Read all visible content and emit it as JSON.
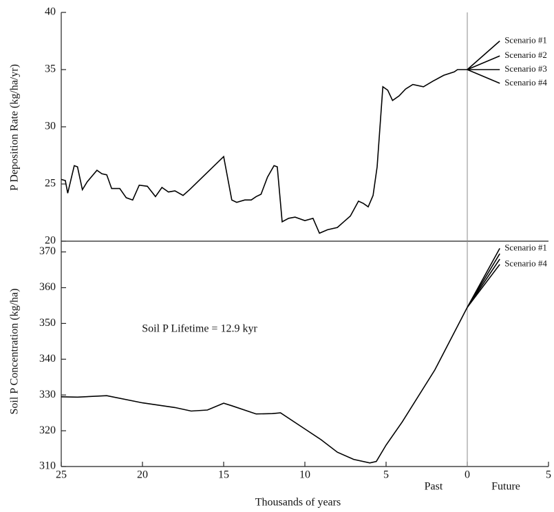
{
  "chart_data": [
    {
      "type": "line",
      "y_label": "P Deposition Rate (kg/ha/yr)",
      "xlim": [
        25,
        -5
      ],
      "ylim": [
        20,
        40
      ],
      "yticks": [
        20,
        25,
        30,
        35,
        40
      ],
      "vline": 0,
      "series": [
        {
          "color": "#000000",
          "x": [
            25,
            24.75,
            24.6,
            24.2,
            24.0,
            23.7,
            23.4,
            22.8,
            22.5,
            22.2,
            21.9,
            21.4,
            21.0,
            20.6,
            20.2,
            19.7,
            19.2,
            18.8,
            18.4,
            18.0,
            17.5,
            17.1,
            15.0,
            14.5,
            14.2,
            13.7,
            13.3,
            13.0,
            12.7,
            12.3,
            11.9,
            11.7,
            11.4,
            11.0,
            10.6,
            10.0,
            9.5,
            9.1,
            8.6,
            8.0,
            7.6,
            7.2,
            6.7,
            6.4,
            6.1,
            5.8,
            5.55,
            5.2,
            4.9,
            4.6,
            4.2,
            3.8,
            3.35,
            2.7,
            2.1,
            1.45,
            0.8,
            0.6,
            0
          ],
          "values": [
            25.4,
            25.3,
            24.2,
            26.6,
            26.5,
            24.5,
            25.2,
            26.2,
            25.9,
            25.8,
            24.6,
            24.6,
            23.8,
            23.6,
            24.9,
            24.8,
            23.9,
            24.7,
            24.3,
            24.4,
            24.0,
            24.5,
            27.4,
            23.6,
            23.4,
            23.6,
            23.6,
            23.9,
            24.1,
            25.6,
            26.6,
            26.5,
            21.7,
            22.0,
            22.1,
            21.8,
            22.0,
            20.7,
            21.0,
            21.2,
            21.7,
            22.2,
            23.5,
            23.3,
            23.0,
            24.0,
            26.5,
            33.5,
            33.2,
            32.3,
            32.7,
            33.3,
            33.7,
            33.5,
            34.0,
            34.5,
            34.8,
            35.0,
            35.0
          ]
        },
        {
          "name": "Scenario #1",
          "color": "#000000",
          "x": [
            0,
            -2
          ],
          "values": [
            35.0,
            37.5
          ]
        },
        {
          "name": "Scenario #2",
          "color": "#000000",
          "x": [
            0,
            -2
          ],
          "values": [
            35.0,
            36.2
          ]
        },
        {
          "name": "Scenario #3",
          "color": "#000000",
          "x": [
            0,
            -2
          ],
          "values": [
            35.0,
            35.0
          ]
        },
        {
          "name": "Scenario #4",
          "color": "#000000",
          "x": [
            0,
            -2
          ],
          "values": [
            35.0,
            33.8
          ]
        }
      ]
    },
    {
      "type": "line",
      "y_label": "Soil P Concentration (kg/ha)",
      "x_label": "Thousands of years",
      "xlim": [
        25,
        -5
      ],
      "xticks": [
        25,
        20,
        15,
        10,
        5,
        0,
        {
          "value": -5,
          "label": "5"
        }
      ],
      "ylim": [
        310,
        373
      ],
      "yticks": [
        310,
        320,
        330,
        340,
        350,
        360,
        370
      ],
      "vline": 0,
      "annotations": [
        "Soil P Lifetime = 12.9 kyr",
        "Past",
        "Future"
      ],
      "series": [
        {
          "color": "#000000",
          "x": [
            25,
            24,
            22.2,
            20,
            18,
            17,
            16,
            15,
            14.5,
            13,
            12,
            11.5,
            10,
            9,
            8,
            7,
            6,
            5.6,
            5,
            4,
            2,
            0
          ],
          "values": [
            329.5,
            329.4,
            329.8,
            327.8,
            326.5,
            325.5,
            325.8,
            327.7,
            327.0,
            324.7,
            324.8,
            325.0,
            320.5,
            317.5,
            314,
            312,
            311,
            311.4,
            316,
            322.5,
            337,
            354.5
          ]
        },
        {
          "name": "Scenario #1",
          "color": "#000000",
          "x": [
            0,
            -2
          ],
          "values": [
            354.5,
            371
          ]
        },
        {
          "color": "#000000",
          "x": [
            0,
            -2
          ],
          "values": [
            354.5,
            369.5
          ]
        },
        {
          "color": "#000000",
          "x": [
            0,
            -2
          ],
          "values": [
            354.5,
            368
          ]
        },
        {
          "name": "Scenario #4",
          "color": "#000000",
          "x": [
            0,
            -2
          ],
          "values": [
            354.5,
            366.5
          ]
        }
      ]
    }
  ]
}
